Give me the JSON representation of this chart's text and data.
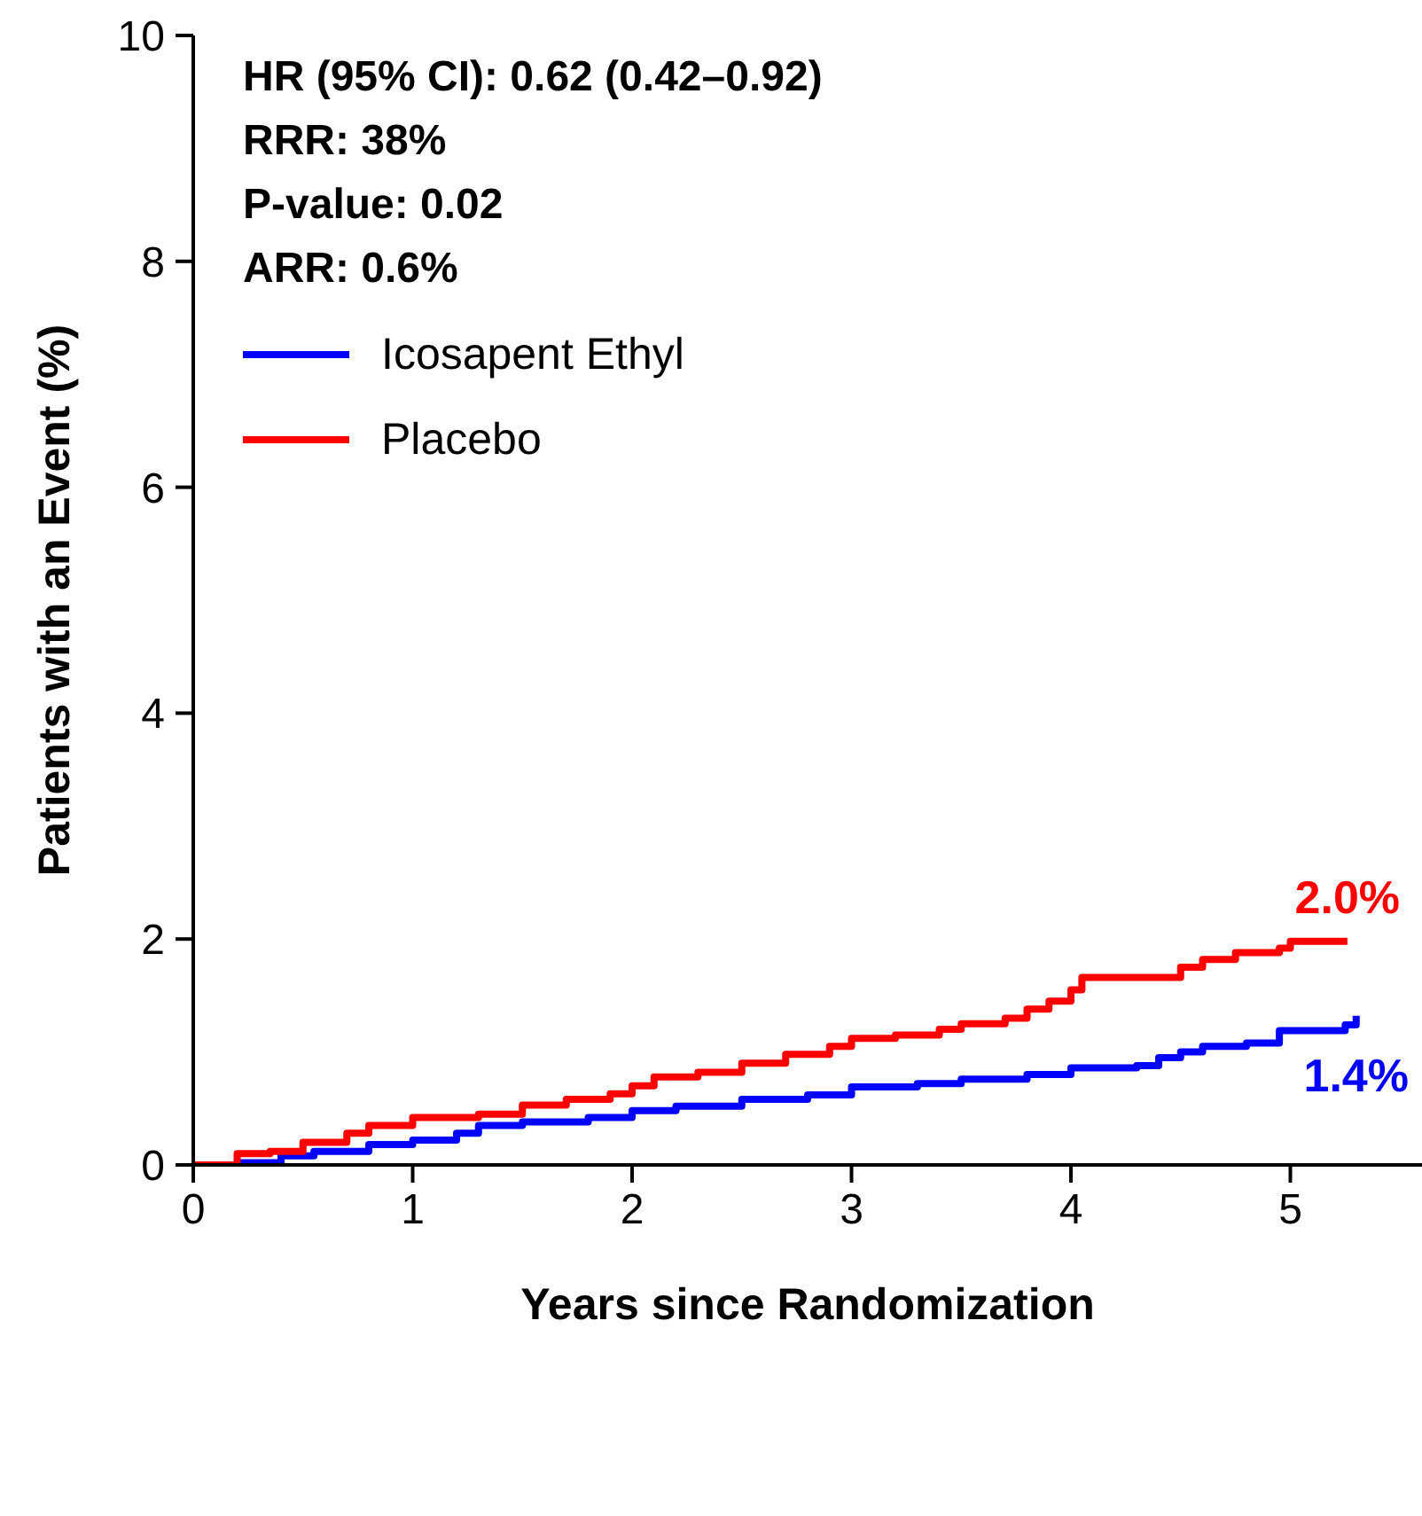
{
  "chart_data": {
    "type": "step",
    "xlabel": "Years since Randomization",
    "ylabel": "Patients with an Event (%)",
    "xlim": [
      0,
      5.6
    ],
    "xticks": [
      0,
      1,
      2,
      3,
      4,
      5
    ],
    "ylim": [
      0,
      10
    ],
    "yticks": [
      0,
      2,
      4,
      6,
      8,
      10
    ],
    "grid": false,
    "legend": "top left",
    "marker": "none",
    "line_style": "solid",
    "annotations": [
      "HR (95% CI): 0.62 (0.42–0.92)",
      "RRR: 38%",
      "P-value: 0.02",
      "ARR: 0.6%",
      {
        "text": "2.0%",
        "x": 5.26,
        "y": 1.98
      },
      {
        "text": "1.4%",
        "x": 5.3,
        "y": 1.32
      }
    ],
    "series": [
      {
        "name": "Icosapent Ethyl",
        "color": "#0000ff",
        "x": [
          0,
          0.2,
          0.4,
          0.55,
          0.8,
          1.0,
          1.2,
          1.3,
          1.5,
          1.8,
          2.0,
          2.2,
          2.5,
          2.8,
          3.0,
          3.3,
          3.5,
          3.8,
          4.0,
          4.3,
          4.4,
          4.5,
          4.6,
          4.8,
          4.95,
          5.25,
          5.3
        ],
        "values": [
          0,
          0.02,
          0.08,
          0.12,
          0.18,
          0.22,
          0.28,
          0.35,
          0.38,
          0.42,
          0.48,
          0.52,
          0.58,
          0.62,
          0.69,
          0.72,
          0.76,
          0.8,
          0.86,
          0.88,
          0.95,
          1.0,
          1.05,
          1.08,
          1.19,
          1.24,
          1.32
        ]
      },
      {
        "name": "Placebo",
        "color": "#ff0000",
        "x": [
          0,
          0.2,
          0.35,
          0.5,
          0.7,
          0.8,
          1.0,
          1.3,
          1.5,
          1.7,
          1.9,
          2.0,
          2.1,
          2.3,
          2.5,
          2.7,
          2.9,
          3.0,
          3.2,
          3.4,
          3.5,
          3.7,
          3.8,
          3.9,
          4.0,
          4.05,
          4.4,
          4.5,
          4.6,
          4.75,
          4.95,
          5.0,
          5.26
        ],
        "values": [
          0,
          0.1,
          0.12,
          0.2,
          0.28,
          0.35,
          0.42,
          0.45,
          0.53,
          0.58,
          0.63,
          0.7,
          0.78,
          0.82,
          0.9,
          0.98,
          1.05,
          1.12,
          1.15,
          1.2,
          1.25,
          1.3,
          1.38,
          1.45,
          1.55,
          1.66,
          1.66,
          1.75,
          1.82,
          1.88,
          1.92,
          1.98,
          1.98
        ]
      }
    ]
  }
}
